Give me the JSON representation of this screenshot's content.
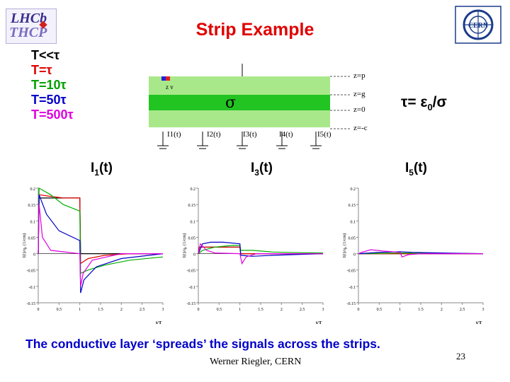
{
  "title": "Strip Example",
  "time_labels": [
    {
      "text": "T<<τ",
      "color": "#000000"
    },
    {
      "text": "T=τ",
      "color": "#e00000"
    },
    {
      "text": "T=10τ",
      "color": "#00a000"
    },
    {
      "text": "T=50τ",
      "color": "#0000c8"
    },
    {
      "text": "T=500τ",
      "color": "#e000e0"
    }
  ],
  "schematic": {
    "sigma": "σ",
    "z_labels": [
      "z=p",
      "z=g",
      "z=0",
      "z=-c"
    ],
    "strip_labels": [
      "I1(t)",
      "I2(t)",
      "I3(t)",
      "I4(t)",
      "I5(t)"
    ],
    "charge_label": "z v"
  },
  "tau_formula": {
    "pre": "τ= ε",
    "sub": "0",
    "post": "/σ"
  },
  "signal_labels": [
    {
      "main": "I",
      "sub": "1",
      "tail": "(t)"
    },
    {
      "main": "I",
      "sub": "3",
      "tail": "(t)"
    },
    {
      "main": "I",
      "sub": "5",
      "tail": "(t)"
    }
  ],
  "axes": {
    "ylabel": "I(t)/q₀ (1/cm)",
    "xlabel": "t/T",
    "yticks": [
      "0.2",
      "0.15",
      "0.1",
      "0.05",
      "0",
      "-0.05",
      "-0.1",
      "-0.15"
    ],
    "xticks": [
      "0",
      "0.5",
      "1",
      "1.5",
      "2",
      "2.5",
      "3"
    ],
    "ylim": [
      -0.15,
      0.2
    ],
    "xlim": [
      0,
      3
    ]
  },
  "series_colors": {
    "T<<τ": "#000000",
    "T=τ": "#e00000",
    "T=10τ": "#00b000",
    "T=50τ": "#0000c8",
    "T=500τ": "#e000e0"
  },
  "chart_data": [
    {
      "type": "line",
      "title": "I1(t)",
      "xlabel": "t/T",
      "ylabel": "I(t)/q₀ (1/cm)",
      "xlim": [
        0,
        3
      ],
      "ylim": [
        -0.15,
        0.2
      ],
      "series": [
        {
          "name": "T<<τ",
          "color": "#000000",
          "x": [
            0,
            0.02,
            0.98,
            1.0,
            1.02,
            3
          ],
          "y": [
            0,
            0.17,
            0.17,
            0.17,
            0,
            0
          ]
        },
        {
          "name": "T=τ",
          "color": "#e00000",
          "x": [
            0,
            0.02,
            0.3,
            0.6,
            1.0,
            1.02,
            1.2,
            1.6,
            2.2,
            3
          ],
          "y": [
            0,
            0.18,
            0.175,
            0.17,
            0.17,
            -0.03,
            -0.015,
            -0.005,
            0,
            0
          ]
        },
        {
          "name": "T=10τ",
          "color": "#00b000",
          "x": [
            0,
            0.02,
            0.3,
            0.6,
            1.0,
            1.02,
            1.2,
            1.6,
            2.2,
            3
          ],
          "y": [
            0,
            0.2,
            0.18,
            0.15,
            0.13,
            -0.06,
            -0.05,
            -0.035,
            -0.02,
            -0.01
          ]
        },
        {
          "name": "T=50τ",
          "color": "#0000c8",
          "x": [
            0,
            0.02,
            0.2,
            0.5,
            1.0,
            1.02,
            1.1,
            1.4,
            2.0,
            3
          ],
          "y": [
            0,
            0.18,
            0.12,
            0.07,
            0.04,
            -0.12,
            -0.08,
            -0.04,
            -0.015,
            0
          ]
        },
        {
          "name": "T=500τ",
          "color": "#e000e0",
          "x": [
            0,
            0.02,
            0.1,
            0.3,
            1.0,
            1.02,
            1.08,
            1.3,
            2.0,
            3
          ],
          "y": [
            0,
            0.15,
            0.05,
            0.01,
            0,
            -0.1,
            -0.06,
            -0.02,
            0,
            0
          ]
        }
      ]
    },
    {
      "type": "line",
      "title": "I3(t)",
      "xlabel": "t/T",
      "ylabel": "I(t)/q₀ (1/cm)",
      "xlim": [
        0,
        3
      ],
      "ylim": [
        -0.15,
        0.2
      ],
      "series": [
        {
          "name": "T<<τ",
          "color": "#000000",
          "x": [
            0,
            0.02,
            0.98,
            1.0,
            1.02,
            3
          ],
          "y": [
            0,
            0.02,
            0.02,
            0.02,
            0,
            0
          ]
        },
        {
          "name": "T=τ",
          "color": "#e00000",
          "x": [
            0,
            0.02,
            0.5,
            1.0,
            1.02,
            1.5,
            2.2,
            3
          ],
          "y": [
            0,
            0.02,
            0.02,
            0.02,
            0,
            0,
            0,
            0
          ]
        },
        {
          "name": "T=10τ",
          "color": "#00b000",
          "x": [
            0,
            0.1,
            0.4,
            0.8,
            1.0,
            1.02,
            1.3,
            1.8,
            2.5,
            3
          ],
          "y": [
            0,
            0.01,
            0.02,
            0.025,
            0.025,
            0.01,
            0.01,
            0.005,
            0.003,
            0.002
          ]
        },
        {
          "name": "T=50τ",
          "color": "#0000c8",
          "x": [
            0,
            0.1,
            0.3,
            0.6,
            1.0,
            1.02,
            1.3,
            1.8,
            2.5,
            3
          ],
          "y": [
            0,
            0.03,
            0.035,
            0.035,
            0.03,
            -0.005,
            -0.008,
            -0.005,
            -0.002,
            0
          ]
        },
        {
          "name": "T=500τ",
          "color": "#e000e0",
          "x": [
            0,
            0.05,
            0.2,
            0.4,
            1.0,
            1.05,
            1.15,
            1.4,
            2.0,
            3
          ],
          "y": [
            0,
            0.03,
            0.01,
            0.002,
            0,
            -0.03,
            -0.01,
            0,
            0,
            0
          ]
        }
      ]
    },
    {
      "type": "line",
      "title": "I5(t)",
      "xlabel": "t/T",
      "ylabel": "I(t)/q₀ (1/cm)",
      "xlim": [
        0,
        3
      ],
      "ylim": [
        -0.15,
        0.2
      ],
      "series": [
        {
          "name": "T<<τ",
          "color": "#000000",
          "x": [
            0,
            3
          ],
          "y": [
            0,
            0
          ]
        },
        {
          "name": "T=τ",
          "color": "#e00000",
          "x": [
            0,
            1.0,
            1.02,
            3
          ],
          "y": [
            0,
            0,
            0,
            0
          ]
        },
        {
          "name": "T=10τ",
          "color": "#00b000",
          "x": [
            0,
            0.5,
            1.0,
            1.5,
            3
          ],
          "y": [
            0,
            0.001,
            0.002,
            0.001,
            0
          ]
        },
        {
          "name": "T=50τ",
          "color": "#0000c8",
          "x": [
            0,
            0.5,
            1.0,
            1.3,
            2.0,
            3
          ],
          "y": [
            0,
            0.004,
            0.006,
            0.004,
            0.002,
            0
          ]
        },
        {
          "name": "T=500τ",
          "color": "#e000e0",
          "x": [
            0,
            0.1,
            0.3,
            0.6,
            1.0,
            1.05,
            1.2,
            1.5,
            2.0,
            3
          ],
          "y": [
            0,
            0.005,
            0.012,
            0.008,
            0.004,
            -0.01,
            -0.003,
            0,
            0,
            0
          ]
        }
      ]
    }
  ],
  "footer": "The conductive layer ‘spreads’ the signals across the strips.",
  "author": "Werner Riegler, CERN",
  "page_number": "23"
}
